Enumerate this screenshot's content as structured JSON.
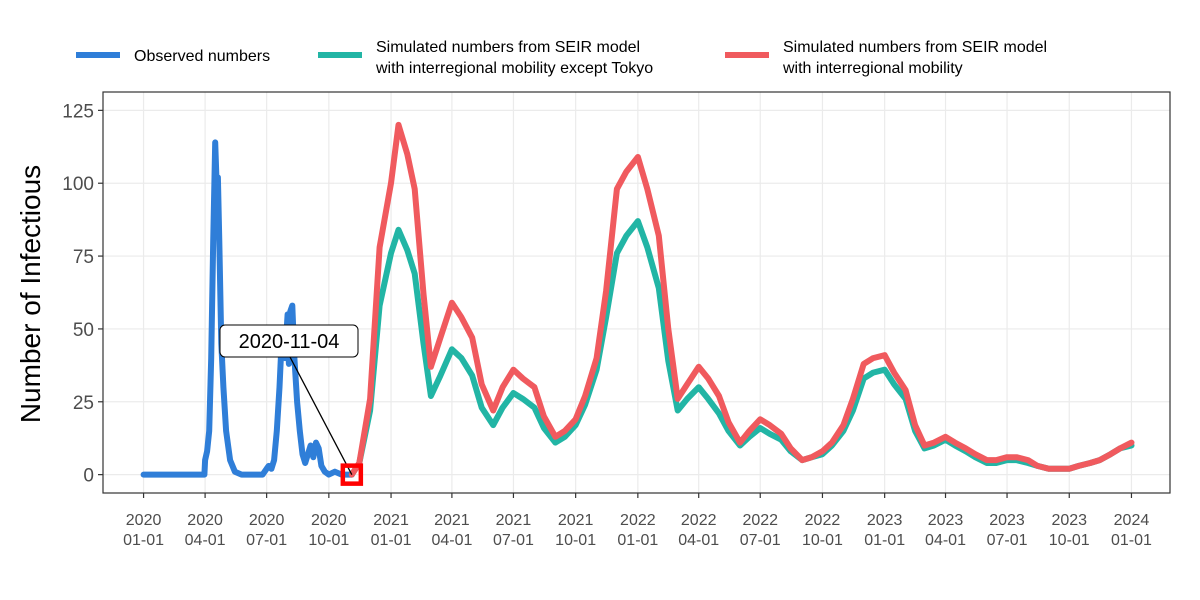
{
  "chart_data": {
    "type": "line",
    "title": "",
    "xlabel": "",
    "ylabel": "Number of Infectious",
    "ylim": [
      0,
      125
    ],
    "y_ticks": [
      0,
      25,
      50,
      75,
      100,
      125
    ],
    "x_ticks": [
      {
        "date": "2020-01-01",
        "label": [
          "2020",
          "01-01"
        ]
      },
      {
        "date": "2020-04-01",
        "label": [
          "2020",
          "04-01"
        ]
      },
      {
        "date": "2020-07-01",
        "label": [
          "2020",
          "07-01"
        ]
      },
      {
        "date": "2020-10-01",
        "label": [
          "2020",
          "10-01"
        ]
      },
      {
        "date": "2021-01-01",
        "label": [
          "2021",
          "01-01"
        ]
      },
      {
        "date": "2021-04-01",
        "label": [
          "2021",
          "04-01"
        ]
      },
      {
        "date": "2021-07-01",
        "label": [
          "2021",
          "07-01"
        ]
      },
      {
        "date": "2021-10-01",
        "label": [
          "2021",
          "10-01"
        ]
      },
      {
        "date": "2022-01-01",
        "label": [
          "2022",
          "01-01"
        ]
      },
      {
        "date": "2022-04-01",
        "label": [
          "2022",
          "04-01"
        ]
      },
      {
        "date": "2022-07-01",
        "label": [
          "2022",
          "07-01"
        ]
      },
      {
        "date": "2022-10-01",
        "label": [
          "2022",
          "10-01"
        ]
      },
      {
        "date": "2023-01-01",
        "label": [
          "2023",
          "01-01"
        ]
      },
      {
        "date": "2023-04-01",
        "label": [
          "2023",
          "04-01"
        ]
      },
      {
        "date": "2023-07-01",
        "label": [
          "2023",
          "07-01"
        ]
      },
      {
        "date": "2023-10-01",
        "label": [
          "2023",
          "10-01"
        ]
      },
      {
        "date": "2024-01-01",
        "label": [
          "2024",
          "01-01"
        ]
      }
    ],
    "grid": true,
    "legend_position": "top",
    "series": [
      {
        "name": "Observed numbers",
        "color": "#2f7ed8",
        "points": [
          [
            "2020-01-01",
            0
          ],
          [
            "2020-03-31",
            0
          ],
          [
            "2020-04-01",
            5
          ],
          [
            "2020-04-04",
            8
          ],
          [
            "2020-04-07",
            15
          ],
          [
            "2020-04-10",
            40
          ],
          [
            "2020-04-13",
            80
          ],
          [
            "2020-04-16",
            114
          ],
          [
            "2020-04-18",
            100
          ],
          [
            "2020-04-20",
            102
          ],
          [
            "2020-04-22",
            80
          ],
          [
            "2020-04-25",
            45
          ],
          [
            "2020-04-28",
            30
          ],
          [
            "2020-05-02",
            15
          ],
          [
            "2020-05-08",
            5
          ],
          [
            "2020-05-15",
            1
          ],
          [
            "2020-05-25",
            0
          ],
          [
            "2020-06-25",
            0
          ],
          [
            "2020-07-01",
            2
          ],
          [
            "2020-07-04",
            3
          ],
          [
            "2020-07-08",
            2
          ],
          [
            "2020-07-12",
            5
          ],
          [
            "2020-07-16",
            15
          ],
          [
            "2020-07-20",
            30
          ],
          [
            "2020-07-24",
            50
          ],
          [
            "2020-07-28",
            40
          ],
          [
            "2020-08-01",
            55
          ],
          [
            "2020-08-03",
            38
          ],
          [
            "2020-08-05",
            56
          ],
          [
            "2020-08-08",
            58
          ],
          [
            "2020-08-11",
            40
          ],
          [
            "2020-08-15",
            25
          ],
          [
            "2020-08-19",
            15
          ],
          [
            "2020-08-23",
            7
          ],
          [
            "2020-08-27",
            4
          ],
          [
            "2020-08-31",
            7
          ],
          [
            "2020-09-04",
            10
          ],
          [
            "2020-09-08",
            6
          ],
          [
            "2020-09-12",
            11
          ],
          [
            "2020-09-16",
            9
          ],
          [
            "2020-09-20",
            3
          ],
          [
            "2020-09-25",
            1
          ],
          [
            "2020-10-01",
            0
          ],
          [
            "2020-10-10",
            1
          ],
          [
            "2020-10-20",
            0
          ],
          [
            "2020-11-04",
            0
          ]
        ]
      },
      {
        "name": "Simulated numbers from SEIR model\nwith interregional mobility except Tokyo",
        "color": "#22b5a5",
        "points": [
          [
            "2020-11-04",
            0
          ],
          [
            "2020-11-15",
            4
          ],
          [
            "2020-12-01",
            22
          ],
          [
            "2020-12-15",
            58
          ],
          [
            "2021-01-01",
            76
          ],
          [
            "2021-01-12",
            84
          ],
          [
            "2021-01-25",
            77
          ],
          [
            "2021-02-05",
            69
          ],
          [
            "2021-02-18",
            45
          ],
          [
            "2021-03-01",
            27
          ],
          [
            "2021-03-15",
            34
          ],
          [
            "2021-04-01",
            43
          ],
          [
            "2021-04-15",
            40
          ],
          [
            "2021-05-01",
            34
          ],
          [
            "2021-05-15",
            23
          ],
          [
            "2021-06-01",
            17
          ],
          [
            "2021-06-15",
            23
          ],
          [
            "2021-07-01",
            28
          ],
          [
            "2021-07-15",
            26
          ],
          [
            "2021-08-01",
            23
          ],
          [
            "2021-08-15",
            16
          ],
          [
            "2021-09-01",
            11
          ],
          [
            "2021-09-15",
            13
          ],
          [
            "2021-10-01",
            17
          ],
          [
            "2021-10-15",
            24
          ],
          [
            "2021-11-01",
            36
          ],
          [
            "2021-11-15",
            54
          ],
          [
            "2021-12-01",
            76
          ],
          [
            "2021-12-15",
            82
          ],
          [
            "2022-01-01",
            87
          ],
          [
            "2022-01-15",
            78
          ],
          [
            "2022-02-01",
            64
          ],
          [
            "2022-02-15",
            39
          ],
          [
            "2022-03-01",
            22
          ],
          [
            "2022-03-15",
            26
          ],
          [
            "2022-04-01",
            30
          ],
          [
            "2022-04-15",
            26
          ],
          [
            "2022-05-01",
            21
          ],
          [
            "2022-05-15",
            15
          ],
          [
            "2022-06-01",
            10
          ],
          [
            "2022-06-15",
            13
          ],
          [
            "2022-07-01",
            16
          ],
          [
            "2022-07-15",
            14
          ],
          [
            "2022-08-01",
            12
          ],
          [
            "2022-08-15",
            8
          ],
          [
            "2022-09-01",
            5
          ],
          [
            "2022-09-15",
            6
          ],
          [
            "2022-10-01",
            7
          ],
          [
            "2022-10-15",
            10
          ],
          [
            "2022-11-01",
            15
          ],
          [
            "2022-11-15",
            22
          ],
          [
            "2022-12-01",
            33
          ],
          [
            "2022-12-15",
            35
          ],
          [
            "2023-01-01",
            36
          ],
          [
            "2023-01-15",
            31
          ],
          [
            "2023-02-01",
            26
          ],
          [
            "2023-02-15",
            15
          ],
          [
            "2023-03-01",
            9
          ],
          [
            "2023-03-15",
            10
          ],
          [
            "2023-04-01",
            12
          ],
          [
            "2023-04-15",
            10
          ],
          [
            "2023-05-01",
            8
          ],
          [
            "2023-05-15",
            6
          ],
          [
            "2023-06-01",
            4
          ],
          [
            "2023-06-15",
            4
          ],
          [
            "2023-07-01",
            5
          ],
          [
            "2023-07-15",
            5
          ],
          [
            "2023-08-01",
            4
          ],
          [
            "2023-08-15",
            3
          ],
          [
            "2023-09-01",
            2
          ],
          [
            "2023-09-15",
            2
          ],
          [
            "2023-10-01",
            2
          ],
          [
            "2023-10-15",
            3
          ],
          [
            "2023-11-01",
            4
          ],
          [
            "2023-11-15",
            5
          ],
          [
            "2023-12-01",
            7
          ],
          [
            "2023-12-15",
            9
          ],
          [
            "2024-01-01",
            10
          ]
        ]
      },
      {
        "name": "Simulated numbers from SEIR model\nwith interregional mobility",
        "color": "#f05a5e",
        "points": [
          [
            "2020-11-04",
            0
          ],
          [
            "2020-11-15",
            4
          ],
          [
            "2020-12-01",
            26
          ],
          [
            "2020-12-15",
            78
          ],
          [
            "2021-01-01",
            100
          ],
          [
            "2021-01-12",
            120
          ],
          [
            "2021-01-25",
            110
          ],
          [
            "2021-02-05",
            98
          ],
          [
            "2021-02-18",
            62
          ],
          [
            "2021-03-01",
            37
          ],
          [
            "2021-03-15",
            47
          ],
          [
            "2021-04-01",
            59
          ],
          [
            "2021-04-15",
            54
          ],
          [
            "2021-05-01",
            47
          ],
          [
            "2021-05-15",
            31
          ],
          [
            "2021-06-01",
            22
          ],
          [
            "2021-06-15",
            30
          ],
          [
            "2021-07-01",
            36
          ],
          [
            "2021-07-15",
            33
          ],
          [
            "2021-08-01",
            30
          ],
          [
            "2021-08-15",
            20
          ],
          [
            "2021-09-01",
            13
          ],
          [
            "2021-09-15",
            15
          ],
          [
            "2021-10-01",
            19
          ],
          [
            "2021-10-15",
            27
          ],
          [
            "2021-11-01",
            40
          ],
          [
            "2021-11-15",
            63
          ],
          [
            "2021-12-01",
            98
          ],
          [
            "2021-12-15",
            104
          ],
          [
            "2022-01-01",
            109
          ],
          [
            "2022-01-15",
            98
          ],
          [
            "2022-02-01",
            82
          ],
          [
            "2022-02-15",
            50
          ],
          [
            "2022-03-01",
            26
          ],
          [
            "2022-03-15",
            31
          ],
          [
            "2022-04-01",
            37
          ],
          [
            "2022-04-15",
            33
          ],
          [
            "2022-05-01",
            27
          ],
          [
            "2022-05-15",
            18
          ],
          [
            "2022-06-01",
            11
          ],
          [
            "2022-06-15",
            15
          ],
          [
            "2022-07-01",
            19
          ],
          [
            "2022-07-15",
            17
          ],
          [
            "2022-08-01",
            14
          ],
          [
            "2022-08-15",
            9
          ],
          [
            "2022-09-01",
            5
          ],
          [
            "2022-09-15",
            6
          ],
          [
            "2022-10-01",
            8
          ],
          [
            "2022-10-15",
            11
          ],
          [
            "2022-11-01",
            17
          ],
          [
            "2022-11-15",
            26
          ],
          [
            "2022-12-01",
            38
          ],
          [
            "2022-12-15",
            40
          ],
          [
            "2023-01-01",
            41
          ],
          [
            "2023-01-15",
            35
          ],
          [
            "2023-02-01",
            29
          ],
          [
            "2023-02-15",
            17
          ],
          [
            "2023-03-01",
            10
          ],
          [
            "2023-03-15",
            11
          ],
          [
            "2023-04-01",
            13
          ],
          [
            "2023-04-15",
            11
          ],
          [
            "2023-05-01",
            9
          ],
          [
            "2023-05-15",
            7
          ],
          [
            "2023-06-01",
            5
          ],
          [
            "2023-06-15",
            5
          ],
          [
            "2023-07-01",
            6
          ],
          [
            "2023-07-15",
            6
          ],
          [
            "2023-08-01",
            5
          ],
          [
            "2023-08-15",
            3
          ],
          [
            "2023-09-01",
            2
          ],
          [
            "2023-09-15",
            2
          ],
          [
            "2023-10-01",
            2
          ],
          [
            "2023-10-15",
            3
          ],
          [
            "2023-11-01",
            4
          ],
          [
            "2023-11-15",
            5
          ],
          [
            "2023-12-01",
            7
          ],
          [
            "2023-12-15",
            9
          ],
          [
            "2024-01-01",
            11
          ]
        ]
      }
    ],
    "annotation": {
      "label": "2020-11-04",
      "date": "2020-11-04",
      "value": 0,
      "marker_color": "#ff0000"
    }
  }
}
